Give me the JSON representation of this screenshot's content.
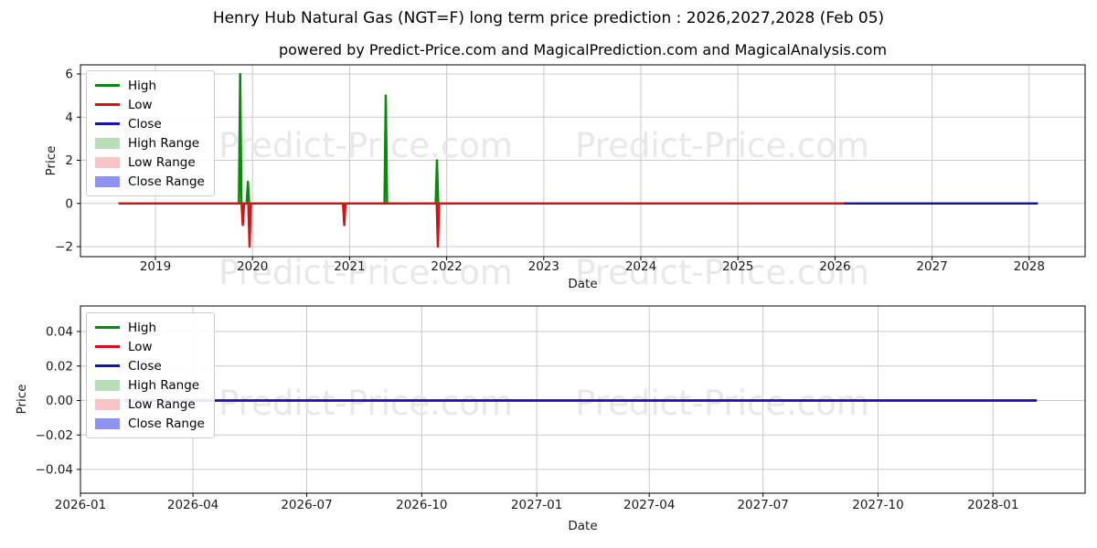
{
  "page": {
    "title": "Henry Hub Natural Gas (NGT=F) long term price prediction : 2026,2027,2028 (Feb 05)",
    "subtitle": "powered by Predict-Price.com and MagicalPrediction.com and MagicalAnalysis.com"
  },
  "watermark": {
    "text": "Predict-Price.com",
    "color": "#e8e8e8"
  },
  "colors": {
    "high": "#0a8a0a",
    "low": "#d41414",
    "close": "#1414b4",
    "high_range": "#b9dcb9",
    "low_range": "#f7c5c5",
    "close_range": "#8d93ee",
    "grid": "#c9c9c9",
    "spine": "#000000",
    "text": "#1a1a1a"
  },
  "legend_items": [
    {
      "label": "High",
      "swatch": "line",
      "color_key": "high"
    },
    {
      "label": "Low",
      "swatch": "line",
      "color_key": "low"
    },
    {
      "label": "Close",
      "swatch": "line",
      "color_key": "close"
    },
    {
      "label": "High Range",
      "swatch": "patch",
      "color_key": "high_range"
    },
    {
      "label": "Low Range",
      "swatch": "patch",
      "color_key": "low_range"
    },
    {
      "label": "Close Range",
      "swatch": "patch",
      "color_key": "close_range"
    }
  ],
  "chart_data": [
    {
      "type": "line",
      "title": "",
      "xlabel": "Date",
      "ylabel": "Price",
      "x_unit": "decimal_year",
      "xlim": [
        2018.23,
        2028.57
      ],
      "ylim": [
        -2.5,
        6.42
      ],
      "grid": true,
      "legend_position": "upper left",
      "x_ticks": {
        "values": [
          2019,
          2020,
          2021,
          2022,
          2023,
          2024,
          2025,
          2026,
          2027,
          2028
        ],
        "labels": [
          "2019",
          "2020",
          "2021",
          "2022",
          "2023",
          "2024",
          "2025",
          "2026",
          "2027",
          "2028"
        ]
      },
      "y_ticks": {
        "values": [
          -2,
          0,
          2,
          4,
          6
        ],
        "labels": [
          "−2",
          "0",
          "2",
          "4",
          "6"
        ]
      },
      "series": [
        {
          "name": "High",
          "color_key": "high",
          "points": [
            [
              2018.62,
              0
            ],
            [
              2019.86,
              0
            ],
            [
              2019.873,
              6
            ],
            [
              2019.886,
              0
            ],
            [
              2019.94,
              0
            ],
            [
              2019.953,
              1
            ],
            [
              2019.966,
              0
            ],
            [
              2021.36,
              0
            ],
            [
              2021.373,
              5
            ],
            [
              2021.386,
              0
            ],
            [
              2021.887,
              0
            ],
            [
              2021.9,
              2
            ],
            [
              2021.913,
              0
            ],
            [
              2026.09,
              0
            ]
          ]
        },
        {
          "name": "Low",
          "color_key": "low",
          "points": [
            [
              2018.62,
              0
            ],
            [
              2019.887,
              0
            ],
            [
              2019.9,
              -1
            ],
            [
              2019.913,
              0
            ],
            [
              2019.957,
              0
            ],
            [
              2019.97,
              -2
            ],
            [
              2019.983,
              0
            ],
            [
              2020.932,
              0
            ],
            [
              2020.945,
              -1
            ],
            [
              2020.958,
              0
            ],
            [
              2021.897,
              0
            ],
            [
              2021.91,
              -2
            ],
            [
              2021.923,
              0
            ],
            [
              2026.09,
              0
            ]
          ]
        },
        {
          "name": "Close",
          "color_key": "close",
          "points": [
            [
              2026.09,
              0
            ],
            [
              2028.09,
              0
            ]
          ]
        }
      ]
    },
    {
      "type": "line",
      "title": "",
      "xlabel": "Date",
      "ylabel": "Price",
      "x_unit": "days_since_2026-01-01",
      "xlim": [
        "2026-01-01",
        "2028-03-15"
      ],
      "ylim": [
        -0.054,
        0.055
      ],
      "grid": true,
      "legend_position": "upper left",
      "x_ticks": {
        "values": [
          0,
          90,
          181,
          273,
          365,
          455,
          546,
          638,
          730
        ],
        "labels": [
          "2026-01",
          "2026-04",
          "2026-07",
          "2026-10",
          "2027-01",
          "2027-04",
          "2027-07",
          "2027-10",
          "2028-01"
        ]
      },
      "y_ticks": {
        "values": [
          0.04,
          0.02,
          0,
          -0.02,
          -0.04
        ],
        "labels": [
          "0.04",
          "0.02",
          "0.00",
          "−0.02",
          "−0.04"
        ]
      },
      "series": [
        {
          "name": "High",
          "color_key": "high",
          "points": [
            [
              35,
              0
            ],
            [
              765,
              0
            ]
          ]
        },
        {
          "name": "Low",
          "color_key": "low",
          "points": [
            [
              35,
              0
            ],
            [
              765,
              0
            ]
          ]
        },
        {
          "name": "Close",
          "color_key": "close",
          "points": [
            [
              35,
              0
            ],
            [
              765,
              0
            ]
          ]
        }
      ]
    }
  ]
}
